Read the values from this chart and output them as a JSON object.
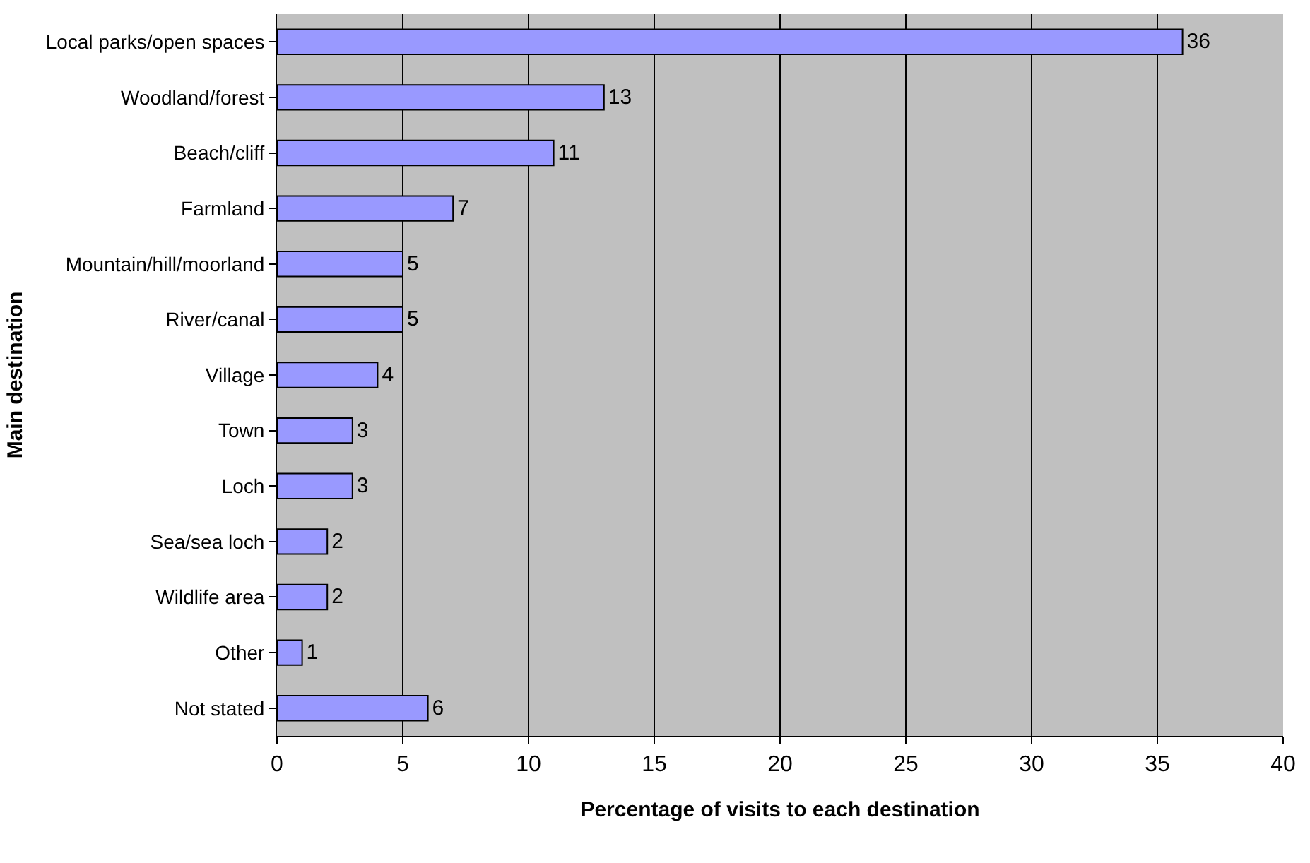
{
  "chart_data": {
    "type": "bar",
    "orientation": "horizontal",
    "xlabel": "Percentage of visits to each destination",
    "ylabel": "Main destination",
    "categories": [
      "Local parks/open spaces",
      "Woodland/forest",
      "Beach/cliff",
      "Farmland",
      "Mountain/hill/moorland",
      "River/canal",
      "Village",
      "Town",
      "Loch",
      "Sea/sea loch",
      "Wildlife area",
      "Other",
      "Not stated"
    ],
    "values": [
      36,
      13,
      11,
      7,
      5,
      5,
      4,
      3,
      3,
      2,
      2,
      1,
      6
    ],
    "color": "#9999ff",
    "xlim": [
      0,
      40
    ],
    "xticks": [
      0,
      5,
      10,
      15,
      20,
      25,
      30,
      35,
      40
    ],
    "grid": "x",
    "data_labels": true,
    "legend": false
  }
}
